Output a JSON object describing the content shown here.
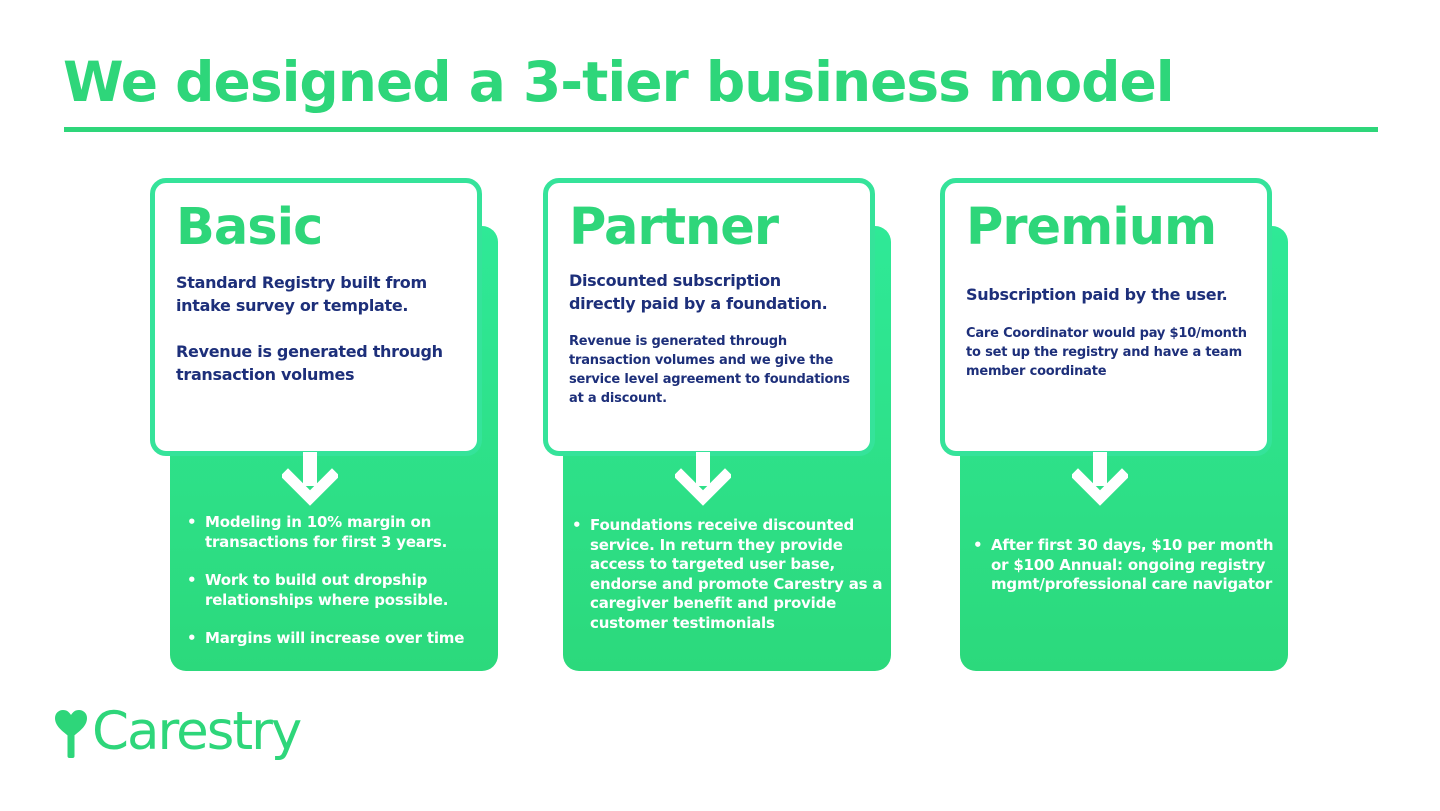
{
  "title": "We designed a 3-tier business model",
  "colors": {
    "accent": "#2ed67a",
    "card_border": "#35e39a",
    "text_dark": "#1d2f7a",
    "panel": "#2fe997"
  },
  "tiers": [
    {
      "name": "Basic",
      "lead": "Standard Registry built from intake survey or template.",
      "secondary": "Revenue is generated through transaction volumes",
      "bullets": [
        "Modeling in 10% margin on transactions for first 3 years.",
        "Work to build out dropship relationships where possible.",
        "Margins will increase over time"
      ]
    },
    {
      "name": "Partner",
      "lead": "Discounted subscription directly paid by a foundation.",
      "description": "Revenue is generated through transaction volumes and we give the service level agreement to foundations at a discount.",
      "bullets": [
        "Foundations receive discounted service. In return they  provide access to targeted user base, endorse and promote Carestry as a caregiver benefit and provide customer testimonials"
      ]
    },
    {
      "name": "Premium",
      "lead": "Subscription paid by the user.",
      "description": "Care Coordinator would pay $10/month to set up the registry and have a team member coordinate",
      "bullets": [
        "After first 30 days, $10 per month or $100 Annual: ongoing registry mgmt/professional care navigator"
      ]
    }
  ],
  "bullet_symbol": "•",
  "icons": [
    "arrow-down-icon",
    "carestry-heart-tree-icon"
  ],
  "logo": {
    "text": "Carestry"
  }
}
